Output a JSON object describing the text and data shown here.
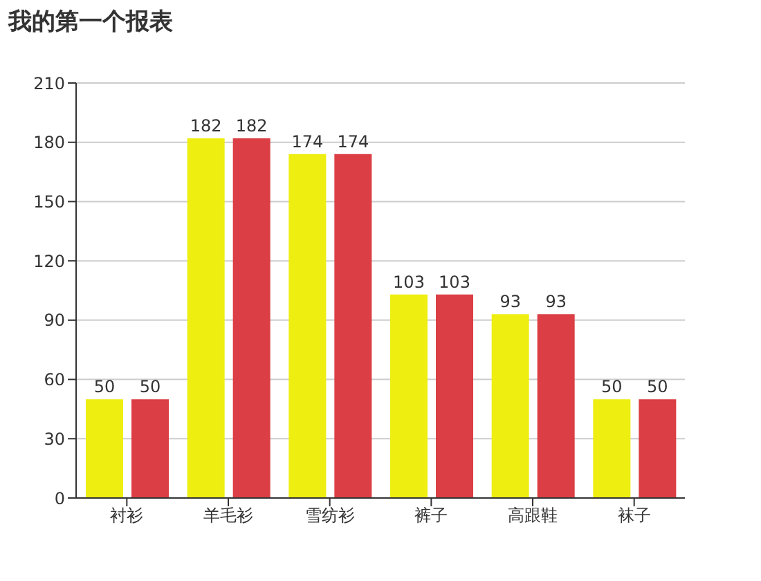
{
  "chart_data": {
    "type": "bar",
    "title": "我的第一个报表",
    "categories": [
      "衬衫",
      "羊毛衫",
      "雪纺衫",
      "裤子",
      "高跟鞋",
      "袜子"
    ],
    "series": [
      {
        "color": "#eeee11",
        "values": [
          50,
          182,
          174,
          103,
          93,
          50
        ]
      },
      {
        "color": "#db3e44",
        "values": [
          50,
          182,
          174,
          103,
          93,
          50
        ]
      }
    ],
    "ylim": [
      0,
      210
    ],
    "yticks": [
      0,
      30,
      60,
      90,
      120,
      150,
      180,
      210
    ],
    "grid": "y",
    "data_labels": true
  }
}
